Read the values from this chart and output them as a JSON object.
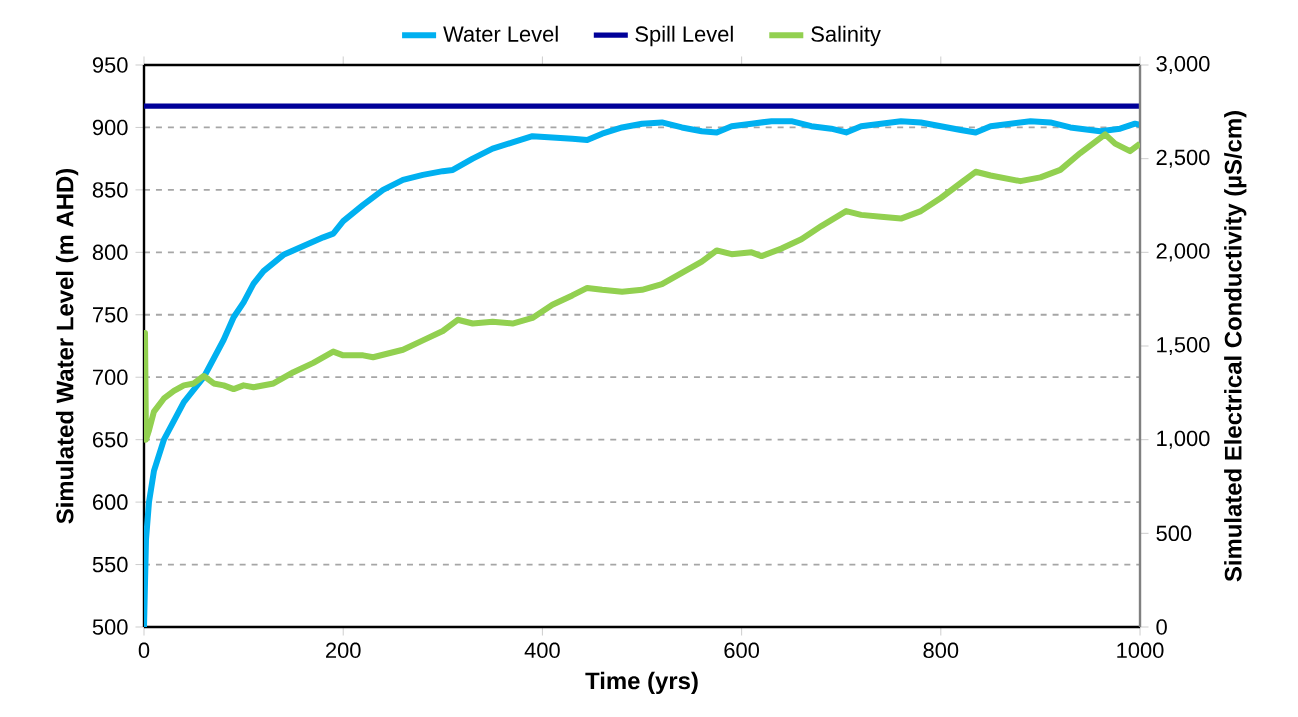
{
  "chart_data": {
    "type": "line",
    "xlabel": "Time (yrs)",
    "ylabel": "Simulated Water Level (m AHD)",
    "y2label": "Simulated Electrical Conductivity (µS/cm)",
    "xlim": [
      0,
      1000
    ],
    "xticks": [
      0,
      200,
      400,
      600,
      800,
      1000
    ],
    "ylim": [
      500,
      950
    ],
    "yticks": [
      500,
      550,
      600,
      650,
      700,
      750,
      800,
      850,
      900,
      950
    ],
    "y2lim": [
      0,
      3000
    ],
    "y2ticks": [
      0,
      {
        "value": 500,
        "label": "500"
      },
      {
        "value": 1000,
        "label": "1,000"
      },
      {
        "value": 1500,
        "label": "1,500"
      },
      {
        "value": 2000,
        "label": "2,000"
      },
      {
        "value": 2500,
        "label": "2,500"
      },
      {
        "value": 3000,
        "label": "3,000"
      }
    ],
    "grid": "y",
    "legend": "top",
    "series": [
      {
        "name": "Water Level",
        "color": "#00b0f0",
        "x": [
          0,
          2,
          5,
          10,
          20,
          30,
          40,
          50,
          60,
          70,
          80,
          90,
          100,
          110,
          120,
          140,
          160,
          180,
          190,
          200,
          220,
          240,
          260,
          280,
          300,
          310,
          330,
          350,
          370,
          390,
          410,
          430,
          445,
          460,
          480,
          500,
          520,
          540,
          560,
          575,
          590,
          610,
          630,
          650,
          670,
          690,
          705,
          720,
          740,
          760,
          780,
          800,
          820,
          835,
          850,
          870,
          890,
          910,
          930,
          960,
          980,
          995,
          1000
        ],
        "values": [
          500,
          570,
          600,
          625,
          650,
          665,
          680,
          690,
          700,
          715,
          730,
          748,
          760,
          775,
          785,
          798,
          805,
          812,
          815,
          825,
          838,
          850,
          858,
          862,
          865,
          866,
          875,
          883,
          888,
          893,
          892,
          891,
          890,
          895,
          900,
          903,
          904,
          900,
          897,
          896,
          901,
          903,
          905,
          905,
          901,
          899,
          896,
          901,
          903,
          905,
          904,
          901,
          898,
          896,
          901,
          903,
          905,
          904,
          900,
          897,
          899,
          903,
          902
        ]
      },
      {
        "name": "Spill Level",
        "color": "#000099",
        "x": [
          0,
          1000
        ],
        "values": [
          917,
          917
        ]
      },
      {
        "name": "Salinity",
        "color": "#92d050",
        "axis": "y2",
        "x": [
          0,
          1,
          2,
          5,
          10,
          20,
          30,
          40,
          50,
          60,
          70,
          80,
          90,
          100,
          110,
          130,
          150,
          170,
          190,
          200,
          220,
          230,
          260,
          280,
          300,
          315,
          330,
          350,
          370,
          390,
          410,
          430,
          445,
          460,
          480,
          500,
          520,
          540,
          560,
          575,
          590,
          610,
          620,
          640,
          660,
          680,
          705,
          720,
          740,
          760,
          780,
          800,
          820,
          835,
          850,
          870,
          880,
          900,
          920,
          940,
          965,
          975,
          990,
          1000
        ],
        "values": [
          1570,
          1570,
          1000,
          1050,
          1150,
          1220,
          1260,
          1290,
          1300,
          1340,
          1300,
          1290,
          1270,
          1290,
          1280,
          1300,
          1360,
          1410,
          1470,
          1450,
          1450,
          1440,
          1480,
          1530,
          1580,
          1640,
          1620,
          1630,
          1620,
          1650,
          1720,
          1770,
          1810,
          1800,
          1790,
          1800,
          1830,
          1890,
          1950,
          2010,
          1990,
          2000,
          1980,
          2020,
          2070,
          2140,
          2220,
          2200,
          2190,
          2180,
          2220,
          2290,
          2370,
          2430,
          2410,
          2390,
          2380,
          2400,
          2440,
          2530,
          2630,
          2580,
          2540,
          2580
        ]
      }
    ]
  }
}
